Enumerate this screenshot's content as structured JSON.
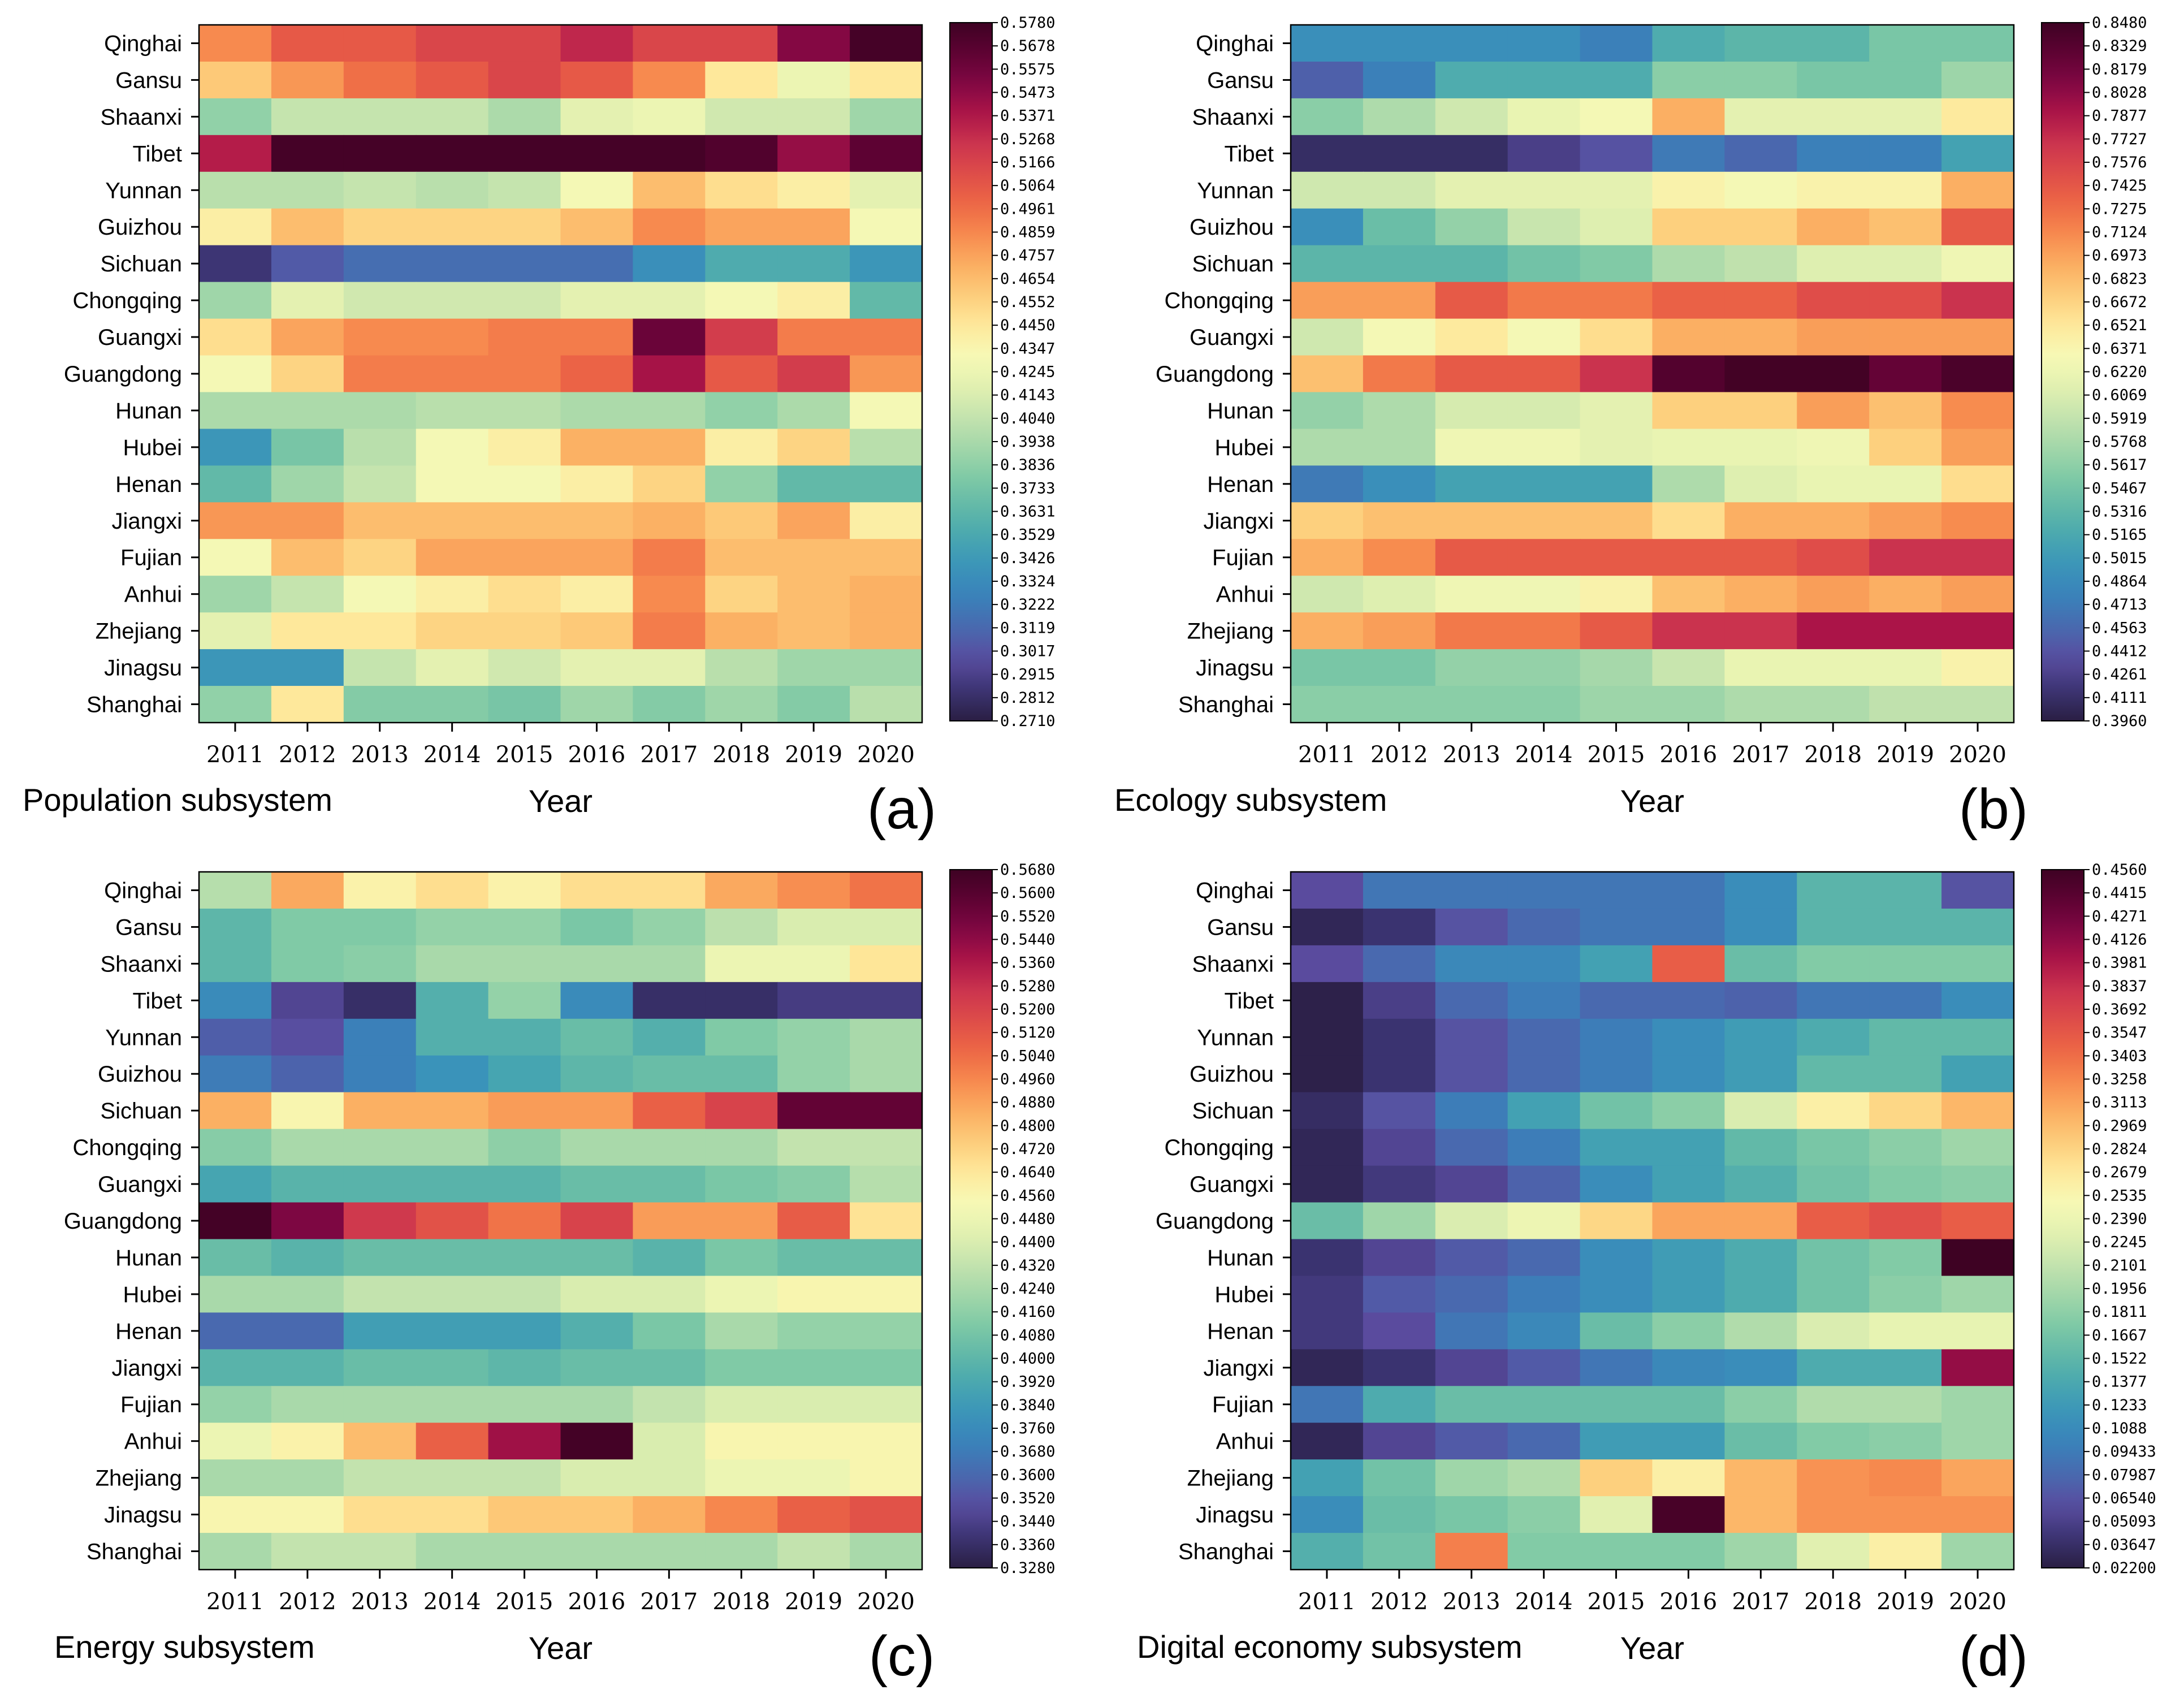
{
  "chart_data": [
    {
      "type": "heatmap",
      "panel_letter": "(a)",
      "subsystem": "Population subsystem",
      "xlabel": "Year",
      "years": [
        "2011",
        "2012",
        "2013",
        "2014",
        "2015",
        "2016",
        "2017",
        "2018",
        "2019",
        "2020"
      ],
      "provinces": [
        "Qinghai",
        "Gansu",
        "Shaanxi",
        "Tibet",
        "Yunnan",
        "Guizhou",
        "Sichuan",
        "Chongqing",
        "Guangxi",
        "Guangdong",
        "Hunan",
        "Hubei",
        "Henan",
        "Jiangxi",
        "Fujian",
        "Anhui",
        "Zhejiang",
        "Jinagsu",
        "Shanghai"
      ],
      "colorbar_ticks": [
        "0.5780",
        "0.5678",
        "0.5575",
        "0.5473",
        "0.5371",
        "0.5268",
        "0.5166",
        "0.5064",
        "0.4961",
        "0.4859",
        "0.4757",
        "0.4654",
        "0.4552",
        "0.4450",
        "0.4347",
        "0.4245",
        "0.4143",
        "0.4040",
        "0.3938",
        "0.3836",
        "0.3733",
        "0.3631",
        "0.3529",
        "0.3426",
        "0.3324",
        "0.3222",
        "0.3119",
        "0.3017",
        "0.2915",
        "0.2812",
        "0.2710"
      ],
      "vmin": 0.271,
      "vmax": 0.578,
      "values": [
        [
          0.485,
          0.505,
          0.505,
          0.515,
          0.515,
          0.53,
          0.515,
          0.515,
          0.55,
          0.575
        ],
        [
          0.46,
          0.48,
          0.495,
          0.505,
          0.515,
          0.505,
          0.485,
          0.445,
          0.425,
          0.445
        ],
        [
          0.385,
          0.405,
          0.405,
          0.405,
          0.395,
          0.42,
          0.425,
          0.41,
          0.41,
          0.39
        ],
        [
          0.535,
          0.575,
          0.575,
          0.575,
          0.575,
          0.575,
          0.575,
          0.57,
          0.545,
          0.565
        ],
        [
          0.4,
          0.4,
          0.405,
          0.4,
          0.405,
          0.43,
          0.465,
          0.45,
          0.44,
          0.42
        ],
        [
          0.44,
          0.465,
          0.455,
          0.455,
          0.455,
          0.465,
          0.485,
          0.475,
          0.475,
          0.43
        ],
        [
          0.285,
          0.305,
          0.315,
          0.315,
          0.315,
          0.315,
          0.335,
          0.355,
          0.355,
          0.34
        ],
        [
          0.39,
          0.42,
          0.41,
          0.41,
          0.41,
          0.42,
          0.42,
          0.43,
          0.44,
          0.365
        ],
        [
          0.45,
          0.475,
          0.485,
          0.485,
          0.49,
          0.49,
          0.56,
          0.52,
          0.49,
          0.49
        ],
        [
          0.43,
          0.455,
          0.49,
          0.49,
          0.49,
          0.5,
          0.54,
          0.505,
          0.52,
          0.48
        ],
        [
          0.395,
          0.395,
          0.395,
          0.4,
          0.4,
          0.395,
          0.395,
          0.385,
          0.395,
          0.43
        ],
        [
          0.34,
          0.375,
          0.4,
          0.43,
          0.44,
          0.47,
          0.47,
          0.44,
          0.455,
          0.4
        ],
        [
          0.365,
          0.39,
          0.405,
          0.43,
          0.43,
          0.44,
          0.455,
          0.385,
          0.365,
          0.365
        ],
        [
          0.48,
          0.48,
          0.465,
          0.465,
          0.465,
          0.465,
          0.47,
          0.46,
          0.475,
          0.44
        ],
        [
          0.43,
          0.465,
          0.455,
          0.475,
          0.475,
          0.475,
          0.49,
          0.465,
          0.465,
          0.465
        ],
        [
          0.39,
          0.405,
          0.43,
          0.44,
          0.45,
          0.44,
          0.485,
          0.455,
          0.465,
          0.47
        ],
        [
          0.42,
          0.445,
          0.445,
          0.455,
          0.455,
          0.46,
          0.49,
          0.47,
          0.465,
          0.47
        ],
        [
          0.34,
          0.34,
          0.405,
          0.42,
          0.41,
          0.42,
          0.42,
          0.4,
          0.39,
          0.39
        ],
        [
          0.385,
          0.445,
          0.38,
          0.38,
          0.375,
          0.39,
          0.38,
          0.39,
          0.38,
          0.4
        ]
      ]
    },
    {
      "type": "heatmap",
      "panel_letter": "(b)",
      "subsystem": "Ecology subsystem",
      "xlabel": "Year",
      "years": [
        "2011",
        "2012",
        "2013",
        "2014",
        "2015",
        "2016",
        "2017",
        "2018",
        "2019",
        "2020"
      ],
      "provinces": [
        "Qinghai",
        "Gansu",
        "Shaanxi",
        "Tibet",
        "Yunnan",
        "Guizhou",
        "Sichuan",
        "Chongqing",
        "Guangxi",
        "Guangdong",
        "Hunan",
        "Hubei",
        "Henan",
        "Jiangxi",
        "Fujian",
        "Anhui",
        "Zhejiang",
        "Jinagsu",
        "Shanghai"
      ],
      "colorbar_ticks": [
        "0.8480",
        "0.8329",
        "0.8179",
        "0.8028",
        "0.7877",
        "0.7727",
        "0.7576",
        "0.7425",
        "0.7275",
        "0.7124",
        "0.6973",
        "0.6823",
        "0.6672",
        "0.6521",
        "0.6371",
        "0.6220",
        "0.6069",
        "0.5919",
        "0.5768",
        "0.5617",
        "0.5467",
        "0.5316",
        "0.5165",
        "0.5015",
        "0.4864",
        "0.4713",
        "0.4563",
        "0.4412",
        "0.4261",
        "0.4111",
        "0.3960"
      ],
      "vmin": 0.396,
      "vmax": 0.848,
      "values": [
        [
          0.49,
          0.49,
          0.49,
          0.49,
          0.475,
          0.52,
          0.53,
          0.53,
          0.55,
          0.55
        ],
        [
          0.45,
          0.475,
          0.52,
          0.52,
          0.52,
          0.56,
          0.56,
          0.55,
          0.55,
          0.57
        ],
        [
          0.56,
          0.58,
          0.6,
          0.62,
          0.63,
          0.69,
          0.615,
          0.615,
          0.615,
          0.65
        ],
        [
          0.41,
          0.41,
          0.41,
          0.425,
          0.44,
          0.47,
          0.455,
          0.475,
          0.475,
          0.51
        ],
        [
          0.6,
          0.6,
          0.615,
          0.615,
          0.615,
          0.64,
          0.63,
          0.64,
          0.64,
          0.69
        ],
        [
          0.49,
          0.54,
          0.565,
          0.595,
          0.61,
          0.67,
          0.67,
          0.69,
          0.68,
          0.74
        ],
        [
          0.53,
          0.53,
          0.53,
          0.545,
          0.555,
          0.58,
          0.59,
          0.61,
          0.61,
          0.625
        ],
        [
          0.7,
          0.7,
          0.74,
          0.72,
          0.72,
          0.735,
          0.735,
          0.75,
          0.75,
          0.77
        ],
        [
          0.6,
          0.63,
          0.65,
          0.63,
          0.66,
          0.69,
          0.69,
          0.7,
          0.7,
          0.7
        ],
        [
          0.68,
          0.72,
          0.74,
          0.74,
          0.77,
          0.835,
          0.845,
          0.845,
          0.825,
          0.84
        ],
        [
          0.565,
          0.58,
          0.605,
          0.605,
          0.615,
          0.67,
          0.67,
          0.7,
          0.68,
          0.71
        ],
        [
          0.58,
          0.58,
          0.625,
          0.625,
          0.615,
          0.62,
          0.62,
          0.625,
          0.67,
          0.7
        ],
        [
          0.47,
          0.49,
          0.51,
          0.51,
          0.51,
          0.58,
          0.61,
          0.62,
          0.62,
          0.66
        ],
        [
          0.67,
          0.68,
          0.68,
          0.68,
          0.68,
          0.66,
          0.69,
          0.69,
          0.7,
          0.71
        ],
        [
          0.69,
          0.71,
          0.74,
          0.74,
          0.74,
          0.74,
          0.74,
          0.75,
          0.77,
          0.77
        ],
        [
          0.6,
          0.61,
          0.625,
          0.625,
          0.64,
          0.68,
          0.69,
          0.7,
          0.69,
          0.7
        ],
        [
          0.69,
          0.7,
          0.72,
          0.72,
          0.74,
          0.77,
          0.77,
          0.79,
          0.79,
          0.79
        ],
        [
          0.55,
          0.55,
          0.565,
          0.565,
          0.575,
          0.595,
          0.62,
          0.62,
          0.62,
          0.64
        ],
        [
          0.56,
          0.56,
          0.56,
          0.56,
          0.57,
          0.57,
          0.58,
          0.58,
          0.59,
          0.59
        ]
      ]
    },
    {
      "type": "heatmap",
      "panel_letter": "(c)",
      "subsystem": "Energy subsystem",
      "xlabel": "Year",
      "years": [
        "2011",
        "2012",
        "2013",
        "2014",
        "2015",
        "2016",
        "2017",
        "2018",
        "2019",
        "2020"
      ],
      "provinces": [
        "Qinghai",
        "Gansu",
        "Shaanxi",
        "Tibet",
        "Yunnan",
        "Guizhou",
        "Sichuan",
        "Chongqing",
        "Guangxi",
        "Guangdong",
        "Hunan",
        "Hubei",
        "Henan",
        "Jiangxi",
        "Fujian",
        "Anhui",
        "Zhejiang",
        "Jinagsu",
        "Shanghai"
      ],
      "colorbar_ticks": [
        "0.5680",
        "0.5600",
        "0.5520",
        "0.5440",
        "0.5360",
        "0.5280",
        "0.5200",
        "0.5120",
        "0.5040",
        "0.4960",
        "0.4880",
        "0.4800",
        "0.4720",
        "0.4640",
        "0.4560",
        "0.4480",
        "0.4400",
        "0.4320",
        "0.4240",
        "0.4160",
        "0.4080",
        "0.4000",
        "0.3920",
        "0.3840",
        "0.3760",
        "0.3680",
        "0.3600",
        "0.3520",
        "0.3440",
        "0.3360",
        "0.3280"
      ],
      "vmin": 0.328,
      "vmax": 0.568,
      "values": [
        [
          0.428,
          0.486,
          0.458,
          0.468,
          0.458,
          0.468,
          0.468,
          0.486,
          0.494,
          0.502
        ],
        [
          0.4,
          0.412,
          0.412,
          0.418,
          0.418,
          0.41,
          0.418,
          0.43,
          0.44,
          0.44
        ],
        [
          0.4,
          0.412,
          0.415,
          0.424,
          0.424,
          0.424,
          0.424,
          0.448,
          0.448,
          0.465
        ],
        [
          0.376,
          0.346,
          0.336,
          0.396,
          0.418,
          0.376,
          0.336,
          0.336,
          0.342,
          0.342
        ],
        [
          0.356,
          0.35,
          0.37,
          0.396,
          0.396,
          0.404,
          0.396,
          0.412,
          0.418,
          0.424
        ],
        [
          0.368,
          0.358,
          0.37,
          0.38,
          0.39,
          0.4,
          0.404,
          0.404,
          0.418,
          0.424
        ],
        [
          0.484,
          0.456,
          0.484,
          0.484,
          0.49,
          0.49,
          0.508,
          0.52,
          0.556,
          0.556
        ],
        [
          0.414,
          0.424,
          0.424,
          0.424,
          0.416,
          0.424,
          0.424,
          0.424,
          0.432,
          0.432
        ],
        [
          0.39,
          0.398,
          0.398,
          0.398,
          0.398,
          0.404,
          0.404,
          0.41,
          0.414,
          0.428
        ],
        [
          0.566,
          0.548,
          0.524,
          0.514,
          0.502,
          0.52,
          0.49,
          0.49,
          0.51,
          0.466
        ],
        [
          0.404,
          0.398,
          0.404,
          0.404,
          0.404,
          0.404,
          0.398,
          0.41,
          0.404,
          0.404
        ],
        [
          0.424,
          0.424,
          0.432,
          0.432,
          0.432,
          0.44,
          0.44,
          0.448,
          0.456,
          0.456
        ],
        [
          0.36,
          0.36,
          0.386,
          0.386,
          0.386,
          0.396,
          0.41,
          0.424,
          0.418,
          0.418
        ],
        [
          0.398,
          0.398,
          0.404,
          0.404,
          0.4,
          0.404,
          0.404,
          0.412,
          0.412,
          0.412
        ],
        [
          0.418,
          0.424,
          0.424,
          0.424,
          0.424,
          0.424,
          0.432,
          0.44,
          0.44,
          0.44
        ],
        [
          0.448,
          0.458,
          0.48,
          0.508,
          0.54,
          0.566,
          0.44,
          0.456,
          0.456,
          0.456
        ],
        [
          0.424,
          0.424,
          0.432,
          0.432,
          0.432,
          0.44,
          0.44,
          0.448,
          0.448,
          0.456
        ],
        [
          0.456,
          0.456,
          0.468,
          0.468,
          0.476,
          0.476,
          0.484,
          0.496,
          0.508,
          0.514
        ],
        [
          0.424,
          0.432,
          0.432,
          0.424,
          0.424,
          0.424,
          0.424,
          0.424,
          0.432,
          0.424
        ]
      ]
    },
    {
      "type": "heatmap",
      "panel_letter": "(d)",
      "subsystem": "Digital economy subsystem",
      "xlabel": "Year",
      "years": [
        "2011",
        "2012",
        "2013",
        "2014",
        "2015",
        "2016",
        "2017",
        "2018",
        "2019",
        "2020"
      ],
      "provinces": [
        "Qinghai",
        "Gansu",
        "Shaanxi",
        "Tibet",
        "Yunnan",
        "Guizhou",
        "Sichuan",
        "Chongqing",
        "Guangxi",
        "Guangdong",
        "Hunan",
        "Hubei",
        "Henan",
        "Jiangxi",
        "Fujian",
        "Anhui",
        "Zhejiang",
        "Jinagsu",
        "Shanghai"
      ],
      "colorbar_ticks": [
        "0.4560",
        "0.4415",
        "0.4271",
        "0.4126",
        "0.3981",
        "0.3837",
        "0.3692",
        "0.3547",
        "0.3403",
        "0.3258",
        "0.3113",
        "0.2969",
        "0.2824",
        "0.2679",
        "0.2535",
        "0.2390",
        "0.2245",
        "0.2101",
        "0.1956",
        "0.1811",
        "0.1667",
        "0.1522",
        "0.1377",
        "0.1233",
        "0.1088",
        "0.09433",
        "0.07987",
        "0.06540",
        "0.05093",
        "0.03647",
        "0.02200"
      ],
      "vmin": 0.022,
      "vmax": 0.456,
      "values": [
        [
          0.06,
          0.09,
          0.09,
          0.09,
          0.09,
          0.09,
          0.11,
          0.15,
          0.15,
          0.065
        ],
        [
          0.03,
          0.04,
          0.065,
          0.08,
          0.09,
          0.09,
          0.11,
          0.15,
          0.15,
          0.15
        ],
        [
          0.06,
          0.08,
          0.105,
          0.105,
          0.13,
          0.35,
          0.16,
          0.175,
          0.175,
          0.175
        ],
        [
          0.025,
          0.05,
          0.08,
          0.095,
          0.08,
          0.08,
          0.075,
          0.09,
          0.09,
          0.11
        ],
        [
          0.025,
          0.04,
          0.065,
          0.08,
          0.095,
          0.11,
          0.125,
          0.14,
          0.155,
          0.155
        ],
        [
          0.025,
          0.04,
          0.065,
          0.08,
          0.095,
          0.11,
          0.125,
          0.155,
          0.155,
          0.13
        ],
        [
          0.035,
          0.065,
          0.095,
          0.13,
          0.165,
          0.18,
          0.225,
          0.26,
          0.28,
          0.3
        ],
        [
          0.03,
          0.055,
          0.08,
          0.095,
          0.13,
          0.13,
          0.155,
          0.17,
          0.18,
          0.19
        ],
        [
          0.03,
          0.045,
          0.055,
          0.075,
          0.11,
          0.13,
          0.145,
          0.165,
          0.175,
          0.18
        ],
        [
          0.16,
          0.19,
          0.225,
          0.24,
          0.28,
          0.31,
          0.31,
          0.35,
          0.36,
          0.35
        ],
        [
          0.04,
          0.055,
          0.07,
          0.08,
          0.11,
          0.125,
          0.14,
          0.165,
          0.175,
          0.456
        ],
        [
          0.045,
          0.07,
          0.08,
          0.095,
          0.11,
          0.125,
          0.14,
          0.165,
          0.18,
          0.19
        ],
        [
          0.045,
          0.06,
          0.09,
          0.105,
          0.16,
          0.18,
          0.2,
          0.225,
          0.235,
          0.235
        ],
        [
          0.03,
          0.04,
          0.055,
          0.07,
          0.09,
          0.105,
          0.11,
          0.14,
          0.14,
          0.41
        ],
        [
          0.09,
          0.14,
          0.16,
          0.16,
          0.16,
          0.16,
          0.18,
          0.2,
          0.2,
          0.19
        ],
        [
          0.03,
          0.055,
          0.07,
          0.08,
          0.125,
          0.125,
          0.16,
          0.175,
          0.18,
          0.19
        ],
        [
          0.13,
          0.165,
          0.19,
          0.2,
          0.285,
          0.26,
          0.3,
          0.32,
          0.325,
          0.31
        ],
        [
          0.11,
          0.16,
          0.17,
          0.18,
          0.23,
          0.45,
          0.3,
          0.32,
          0.32,
          0.32
        ],
        [
          0.145,
          0.165,
          0.33,
          0.175,
          0.175,
          0.175,
          0.19,
          0.23,
          0.26,
          0.19
        ]
      ]
    }
  ],
  "colormap_stops": [
    "#2a1e43",
    "#3b3472",
    "#5a4b9e",
    "#4a67ae",
    "#3b80b9",
    "#3a93ba",
    "#47a6b0",
    "#61b8a8",
    "#7ec9a6",
    "#a2d7a9",
    "#c4e3ae",
    "#e1f0b0",
    "#f6f9b6",
    "#fee99c",
    "#fdce7c",
    "#fbae62",
    "#f78b4f",
    "#ed6745",
    "#df4d49",
    "#cb344e",
    "#ad1548",
    "#800743",
    "#5e0233",
    "#3e0223"
  ]
}
